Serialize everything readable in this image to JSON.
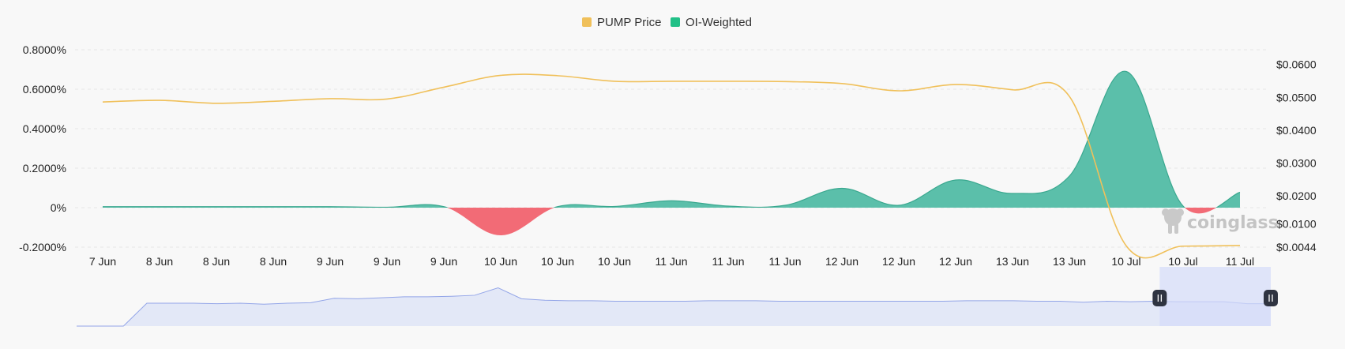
{
  "legend": {
    "price_label": "PUMP Price",
    "oi_label": "OI-Weighted"
  },
  "watermark": "coinglass",
  "colors": {
    "price_line": "#f0c05a",
    "oi_positive": "#5bbfaa",
    "oi_negative": "#f26b76",
    "navigator_fill": "#e3e8f7",
    "navigator_line": "#93a5e8",
    "navigator_selection": "#d4dcfa"
  },
  "chart_data": {
    "type": "area",
    "categories": [
      "7 Jun",
      "8 Jun",
      "8 Jun",
      "8 Jun",
      "9 Jun",
      "9 Jun",
      "9 Jun",
      "10 Jun",
      "10 Jun",
      "10 Jun",
      "11 Jun",
      "11 Jun",
      "11 Jun",
      "12 Jun",
      "12 Jun",
      "12 Jun",
      "13 Jun",
      "13 Jun",
      "10 Jul",
      "10 Jul",
      "11 Jul"
    ],
    "y_left": {
      "ticks": [
        "0.8000%",
        "0.6000%",
        "0.4000%",
        "0.2000%",
        "0%",
        "-0.2000%"
      ],
      "range": [
        -0.2,
        0.8
      ]
    },
    "y_right": {
      "ticks": [
        "$0.0600",
        "$0.0500",
        "$0.0400",
        "$0.0300",
        "$0.0200",
        "$0.0100",
        "$0.0044"
      ],
      "range": [
        0.0044,
        0.0645
      ]
    },
    "series": [
      {
        "name": "OI-Weighted",
        "axis": "left",
        "values": [
          0.005,
          0.005,
          0.005,
          0.005,
          0.005,
          0.002,
          0.005,
          -0.14,
          0.005,
          0.006,
          0.035,
          0.008,
          0.012,
          0.098,
          0.012,
          0.14,
          0.072,
          0.16,
          0.69,
          0.008,
          0.078
        ]
      },
      {
        "name": "PUMP Price",
        "axis": "right",
        "values": [
          0.0486,
          0.0491,
          0.0482,
          0.0488,
          0.0496,
          0.0495,
          0.0531,
          0.0567,
          0.0566,
          0.0549,
          0.0549,
          0.0549,
          0.0548,
          0.0542,
          0.052,
          0.0539,
          0.0523,
          0.0503,
          0.0048,
          0.0047,
          0.0049
        ]
      }
    ],
    "navigator": {
      "values": [
        0.0,
        0.0,
        0.0,
        0.46,
        0.46,
        0.46,
        0.45,
        0.46,
        0.44,
        0.46,
        0.47,
        0.56,
        0.55,
        0.57,
        0.59,
        0.59,
        0.6,
        0.62,
        0.77,
        0.55,
        0.52,
        0.51,
        0.51,
        0.5,
        0.5,
        0.5,
        0.5,
        0.51,
        0.51,
        0.51,
        0.5,
        0.5,
        0.5,
        0.5,
        0.5,
        0.5,
        0.5,
        0.5,
        0.51,
        0.51,
        0.51,
        0.5,
        0.5,
        0.48,
        0.5,
        0.49,
        0.5,
        0.49,
        0.49,
        0.49,
        0.45,
        0.45
      ],
      "selection_range": [
        0.907,
        1.0
      ]
    }
  }
}
